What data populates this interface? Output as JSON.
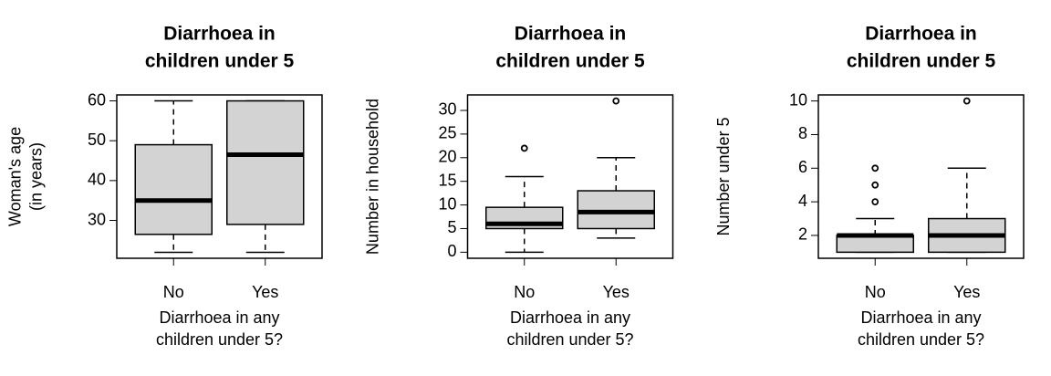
{
  "chart_data": [
    {
      "type": "boxplot",
      "title": [
        "Diarrhoea in",
        "children under 5"
      ],
      "xlabel": [
        "Diarrhoea in any",
        "children under 5?"
      ],
      "ylabel": [
        "Woman's age",
        "(in years)"
      ],
      "categories": [
        "No",
        "Yes"
      ],
      "color": "#d3d3d3",
      "boxes": [
        {
          "whislo": 22,
          "q1": 26.5,
          "med": 35,
          "q3": 49,
          "whishi": 60,
          "fliers": []
        },
        {
          "whislo": 22,
          "q1": 29,
          "med": 46.5,
          "q3": 60,
          "whishi": 60,
          "fliers": []
        }
      ],
      "ylim": [
        20.5,
        61.5
      ],
      "yticks": [
        30,
        40,
        50,
        60
      ]
    },
    {
      "type": "boxplot",
      "title": [
        "Diarrhoea in",
        "children under 5"
      ],
      "xlabel": [
        "Diarrhoea in any",
        "children under 5?"
      ],
      "ylabel": [
        "Number in household"
      ],
      "categories": [
        "No",
        "Yes"
      ],
      "color": "#d3d3d3",
      "boxes": [
        {
          "whislo": 0,
          "q1": 5,
          "med": 6,
          "q3": 9.5,
          "whishi": 16,
          "fliers": [
            22
          ]
        },
        {
          "whislo": 3,
          "q1": 5,
          "med": 8.5,
          "q3": 13,
          "whishi": 20,
          "fliers": [
            32
          ]
        }
      ],
      "ylim": [
        -1.28,
        33.28
      ],
      "yticks": [
        0,
        5,
        10,
        15,
        20,
        25,
        30
      ]
    },
    {
      "type": "boxplot",
      "title": [
        "Diarrhoea in",
        "children under 5"
      ],
      "xlabel": [
        "Diarrhoea in any",
        "children under 5?"
      ],
      "ylabel": [
        "Number under 5"
      ],
      "categories": [
        "No",
        "Yes"
      ],
      "color": "#d3d3d3",
      "boxes": [
        {
          "whislo": 1,
          "q1": 1,
          "med": 2,
          "q3": 2,
          "whishi": 3,
          "fliers": [
            4,
            5,
            6
          ]
        },
        {
          "whislo": 1,
          "q1": 1,
          "med": 2,
          "q3": 3,
          "whishi": 6,
          "fliers": [
            10
          ]
        }
      ],
      "ylim": [
        0.64,
        10.36
      ],
      "yticks": [
        2,
        4,
        6,
        8,
        10
      ]
    }
  ]
}
